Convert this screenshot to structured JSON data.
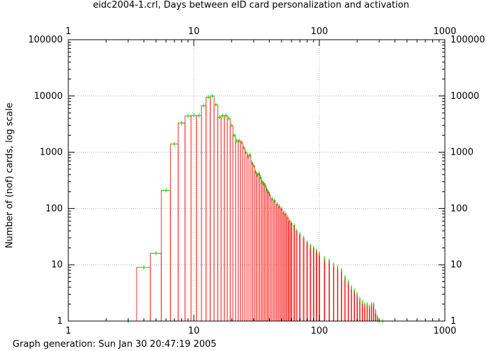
{
  "header": {
    "title": "eidc2004-1.crl, Days between eID card personalization and activation"
  },
  "footer": {
    "text": "Graph generation: Sun Jan 30 20:47:19 2005"
  },
  "colors": {
    "bars": "#ff0000",
    "errors": "#00dd00",
    "grid": "#b0b0b0",
    "axis": "#000000"
  },
  "chart_data": {
    "type": "bar",
    "title": "eidc2004-1.crl, Days between eID card personalization and activation",
    "xlabel": "",
    "ylabel": "Number of (nof) cards, log scale",
    "xscale": "log",
    "yscale": "log",
    "xlim": [
      1,
      1000
    ],
    "ylim": [
      1,
      100000
    ],
    "grid": true,
    "x_ticks": [
      "1",
      "10",
      "100",
      "1000"
    ],
    "x2_ticks": [
      "1",
      "10",
      "100",
      "1000"
    ],
    "y_ticks": [
      "1",
      "10",
      "100",
      "1000",
      "10000",
      "100000"
    ],
    "y2_ticks": [
      "1",
      "10",
      "100",
      "1000",
      "10000",
      "100000"
    ],
    "series": [
      {
        "x": [
          3,
          4,
          5,
          6,
          7,
          8,
          9,
          10,
          11,
          12,
          13,
          14,
          15,
          16,
          17,
          18,
          19,
          20,
          21,
          22,
          23,
          24,
          25,
          26,
          27,
          28,
          29,
          30,
          31,
          32,
          33,
          34,
          35,
          36,
          37,
          38,
          39,
          40,
          42,
          44,
          46,
          48,
          50,
          52,
          54,
          56,
          58,
          60,
          63,
          66,
          70,
          75,
          80,
          85,
          90,
          95,
          100,
          110,
          120,
          130,
          140,
          150,
          160,
          170,
          180,
          190,
          200,
          210,
          220,
          230,
          240,
          250,
          260,
          270,
          280,
          290,
          300,
          320
        ],
        "values": [
          1,
          9,
          16,
          210,
          1400,
          3300,
          4400,
          4500,
          4500,
          6700,
          9500,
          10000,
          7000,
          4200,
          4500,
          4500,
          4000,
          3000,
          2000,
          1600,
          1600,
          1500,
          1200,
          1000,
          850,
          900,
          650,
          580,
          450,
          400,
          420,
          360,
          300,
          280,
          260,
          220,
          200,
          180,
          150,
          140,
          120,
          110,
          100,
          85,
          80,
          70,
          60,
          55,
          50,
          40,
          35,
          30,
          25,
          22,
          20,
          18,
          16,
          13,
          12,
          10,
          9,
          8,
          6,
          5,
          4,
          3.5,
          3,
          2.5,
          2.2,
          2,
          2,
          1.8,
          2,
          2,
          1.5,
          1.2,
          1,
          1
        ]
      }
    ]
  }
}
